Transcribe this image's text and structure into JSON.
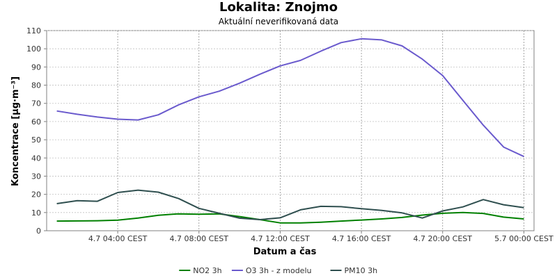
{
  "header": {
    "title": "Lokalita: Znojmo",
    "subtitle": "Aktuální neverifikovaná data"
  },
  "chart_data": {
    "type": "line",
    "title": "Lokalita: Znojmo",
    "subtitle": "Aktuální neverifikovaná data",
    "xlabel": "Datum a čas",
    "ylabel": "Koncentrace [µg·m⁻³]",
    "ylim": [
      0,
      110
    ],
    "yticks": [
      0,
      10,
      20,
      30,
      40,
      50,
      60,
      70,
      80,
      90,
      100,
      110
    ],
    "grid": true,
    "legend_position": "bottom",
    "x_hours": [
      1,
      2,
      3,
      4,
      5,
      6,
      7,
      8,
      9,
      10,
      11,
      12,
      13,
      14,
      15,
      16,
      17,
      18,
      19,
      20,
      21,
      22,
      23,
      24
    ],
    "xlim_hours": [
      0.5,
      24.5
    ],
    "x_ticks": [
      {
        "hour": 4,
        "label": "4.7 04:00 CEST"
      },
      {
        "hour": 8,
        "label": "4.7 08:00 CEST"
      },
      {
        "hour": 12,
        "label": "4.7 12:00 CEST"
      },
      {
        "hour": 16,
        "label": "4.7 16:00 CEST"
      },
      {
        "hour": 20,
        "label": "4.7 20:00 CEST"
      },
      {
        "hour": 24,
        "label": "5.7 00:00 CEST"
      }
    ],
    "series": [
      {
        "name": "NO2 3h",
        "color": "#008000",
        "values": [
          5.3,
          5.4,
          5.5,
          5.8,
          7.0,
          8.5,
          9.3,
          9.1,
          9.3,
          7.8,
          6.1,
          4.3,
          4.3,
          4.7,
          5.3,
          5.9,
          6.5,
          7.3,
          8.6,
          9.6,
          10.0,
          9.5,
          7.5,
          6.5
        ]
      },
      {
        "name": "O3 3h - z modelu",
        "color": "#6a5acd",
        "values": [
          65.8,
          64.0,
          62.5,
          61.3,
          60.9,
          63.7,
          69.2,
          73.6,
          76.7,
          81.1,
          86.0,
          90.6,
          93.6,
          98.7,
          103.4,
          105.5,
          104.9,
          101.6,
          94.3,
          85.3,
          71.6,
          58.0,
          46.0,
          40.8
        ]
      },
      {
        "name": "PM10 3h",
        "color": "#2f4f4f",
        "values": [
          14.9,
          16.5,
          16.2,
          21.0,
          22.3,
          21.2,
          17.7,
          12.3,
          9.6,
          6.9,
          6.1,
          7.1,
          11.5,
          13.4,
          13.2,
          12.1,
          11.2,
          9.8,
          7.0,
          10.9,
          13.1,
          17.1,
          14.3,
          12.7
        ]
      }
    ]
  }
}
